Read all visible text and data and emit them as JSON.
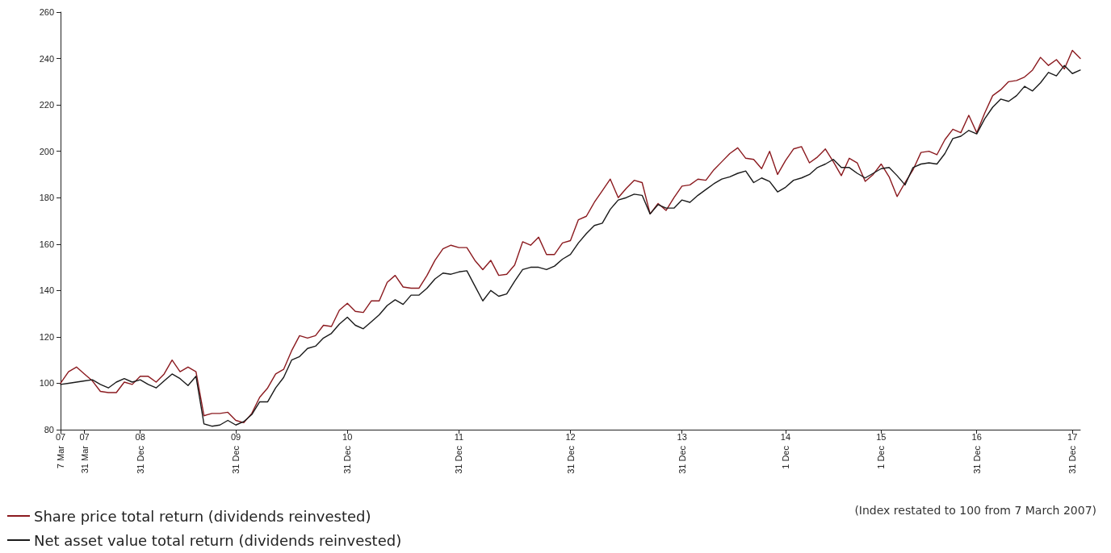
{
  "chart_data": {
    "type": "line",
    "marker": "none",
    "line_style": "solid",
    "grid": false,
    "legend": "bottom left",
    "annotations": [
      "7 Mar",
      "31 Mar",
      "31 Dec",
      "31 Dec",
      "31 Dec",
      "31 Dec",
      "31 Dec",
      "31 Dec",
      "1 Dec",
      "1 Dec",
      "31 Dec",
      "31 Dec",
      "(Index restated to 100 from 7 March 2007)"
    ],
    "categories": [
      "07",
      null,
      null,
      "07",
      null,
      null,
      null,
      null,
      null,
      null,
      "08",
      null,
      null,
      null,
      null,
      null,
      null,
      null,
      null,
      null,
      null,
      null,
      "09",
      null,
      null,
      null,
      null,
      null,
      null,
      null,
      null,
      null,
      null,
      null,
      null,
      null,
      "10",
      null,
      null,
      null,
      null,
      null,
      null,
      null,
      null,
      null,
      null,
      null,
      null,
      null,
      "11",
      null,
      null,
      null,
      null,
      null,
      null,
      null,
      null,
      null,
      null,
      null,
      null,
      null,
      "12",
      null,
      null,
      null,
      null,
      null,
      null,
      null,
      null,
      null,
      null,
      null,
      null,
      null,
      "13",
      null,
      null,
      null,
      null,
      null,
      null,
      null,
      null,
      null,
      null,
      null,
      null,
      "14",
      null,
      null,
      null,
      null,
      null,
      null,
      null,
      null,
      null,
      null,
      null,
      "15",
      null,
      null,
      null,
      null,
      null,
      null,
      null,
      null,
      null,
      null,
      null,
      "16",
      null,
      null,
      null,
      null,
      null,
      null,
      null,
      null,
      null,
      null,
      null,
      "17",
      null
    ],
    "ylim": [
      80,
      260
    ],
    "yticks": [
      80,
      100,
      120,
      140,
      160,
      180,
      200,
      220,
      240,
      260
    ],
    "series": [
      {
        "name": "Share price total return (dividends reinvested)",
        "color": "#8b1a1f",
        "values": [
          100,
          105,
          107,
          104,
          101,
          96.5,
          96,
          96,
          100.5,
          99.5,
          103,
          103,
          100.5,
          104,
          110,
          105,
          107,
          105,
          86,
          87,
          87,
          87.5,
          84,
          83,
          87,
          94,
          98,
          104,
          106,
          114,
          120.5,
          119.5,
          120.5,
          125,
          124.5,
          131.5,
          134.5,
          131,
          130.5,
          135.5,
          135.5,
          143.5,
          146.5,
          141.5,
          141,
          141,
          146.5,
          153,
          158,
          159.5,
          158.5,
          158.5,
          153,
          149,
          153,
          146.5,
          147,
          151,
          161,
          159.5,
          163,
          155.5,
          155.5,
          160.5,
          161.5,
          170.5,
          172,
          178,
          183,
          188,
          180,
          184,
          187.5,
          186.5,
          173,
          177.5,
          174.5,
          180,
          185,
          185.5,
          188,
          187.5,
          192,
          195.5,
          199,
          201.5,
          197,
          196.5,
          192.5,
          200,
          190,
          196,
          201,
          202,
          195,
          197.5,
          201,
          195.5,
          189.5,
          197,
          195,
          187,
          190,
          194.5,
          189,
          180.5,
          186.5,
          192,
          199.5,
          200,
          198.5,
          205,
          209.5,
          208,
          215.5,
          208,
          216.5,
          224,
          226.5,
          230,
          230.5,
          232,
          235,
          240.5,
          237,
          239.5,
          235.5,
          243.5,
          240
        ]
      },
      {
        "name": "Net asset value total return (dividends reinvested)",
        "color": "#1a1a1a",
        "values": [
          99.5,
          100,
          100.5,
          101,
          101.5,
          99.5,
          98,
          100.5,
          102,
          100.5,
          101.5,
          99.5,
          98,
          101,
          104,
          102,
          99,
          103,
          82.5,
          81.5,
          82,
          84,
          82,
          83.5,
          86.5,
          92,
          92,
          98,
          102.5,
          110,
          111.5,
          115,
          116,
          119.5,
          121.5,
          125.5,
          128.5,
          125,
          123.5,
          126.5,
          129.5,
          133.5,
          136,
          134,
          138,
          138,
          141,
          145,
          147.5,
          147,
          148,
          148.5,
          142,
          135.5,
          140,
          137.5,
          138.5,
          144,
          149,
          150,
          150,
          149,
          150.5,
          153.5,
          155.5,
          160.5,
          164.5,
          168,
          169,
          175,
          179,
          180,
          181.5,
          181,
          173,
          177,
          175.5,
          175.5,
          179,
          178,
          181,
          183.5,
          186,
          188,
          189,
          190.5,
          191.5,
          186.5,
          188.5,
          187,
          182.5,
          184.5,
          187.5,
          188.5,
          190,
          193,
          194.5,
          196.5,
          193,
          193,
          190.5,
          188.5,
          190.5,
          192.5,
          193,
          189.5,
          185.5,
          193,
          194.5,
          195,
          194.5,
          199,
          205.5,
          206.5,
          209,
          207.5,
          214,
          219,
          222.5,
          221.5,
          224,
          228,
          226,
          229.5,
          234,
          232.5,
          237,
          233.5,
          235
        ]
      }
    ]
  }
}
